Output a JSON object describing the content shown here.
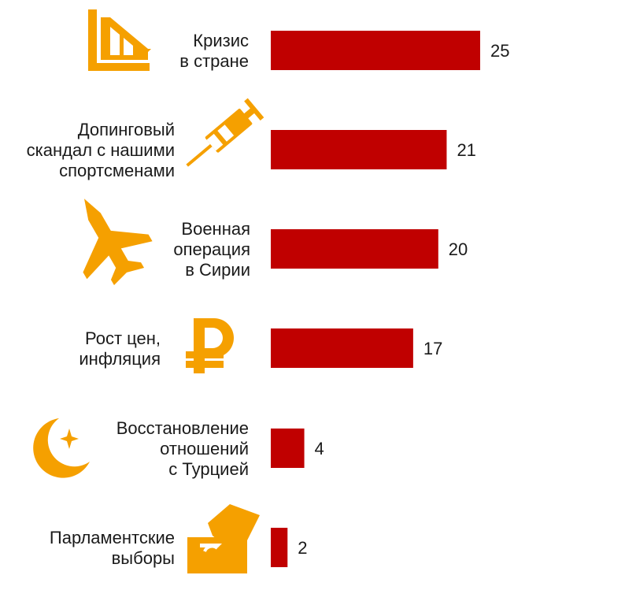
{
  "chart_data": {
    "type": "bar",
    "orientation": "horizontal",
    "categories": [
      "Кризис\nв стране",
      "Допинговый\nскандал с нашими\nспортсменами",
      "Военная\nоперация\nв Сирии",
      "Рост цен,\nинфляция",
      "Восстановление\nотношений\nс Турцией",
      "Парламентские\nвыборы"
    ],
    "values": [
      25,
      21,
      20,
      17,
      4,
      2
    ],
    "xlim": [
      0,
      25
    ],
    "grid": false,
    "legend": "none",
    "bar_color": "#c00000",
    "icon_color": "#f5a000",
    "icons": [
      "chart-decline-icon",
      "syringe-icon",
      "fighter-jet-icon",
      "ruble-icon",
      "crescent-star-icon",
      "ballot-box-icon"
    ]
  }
}
